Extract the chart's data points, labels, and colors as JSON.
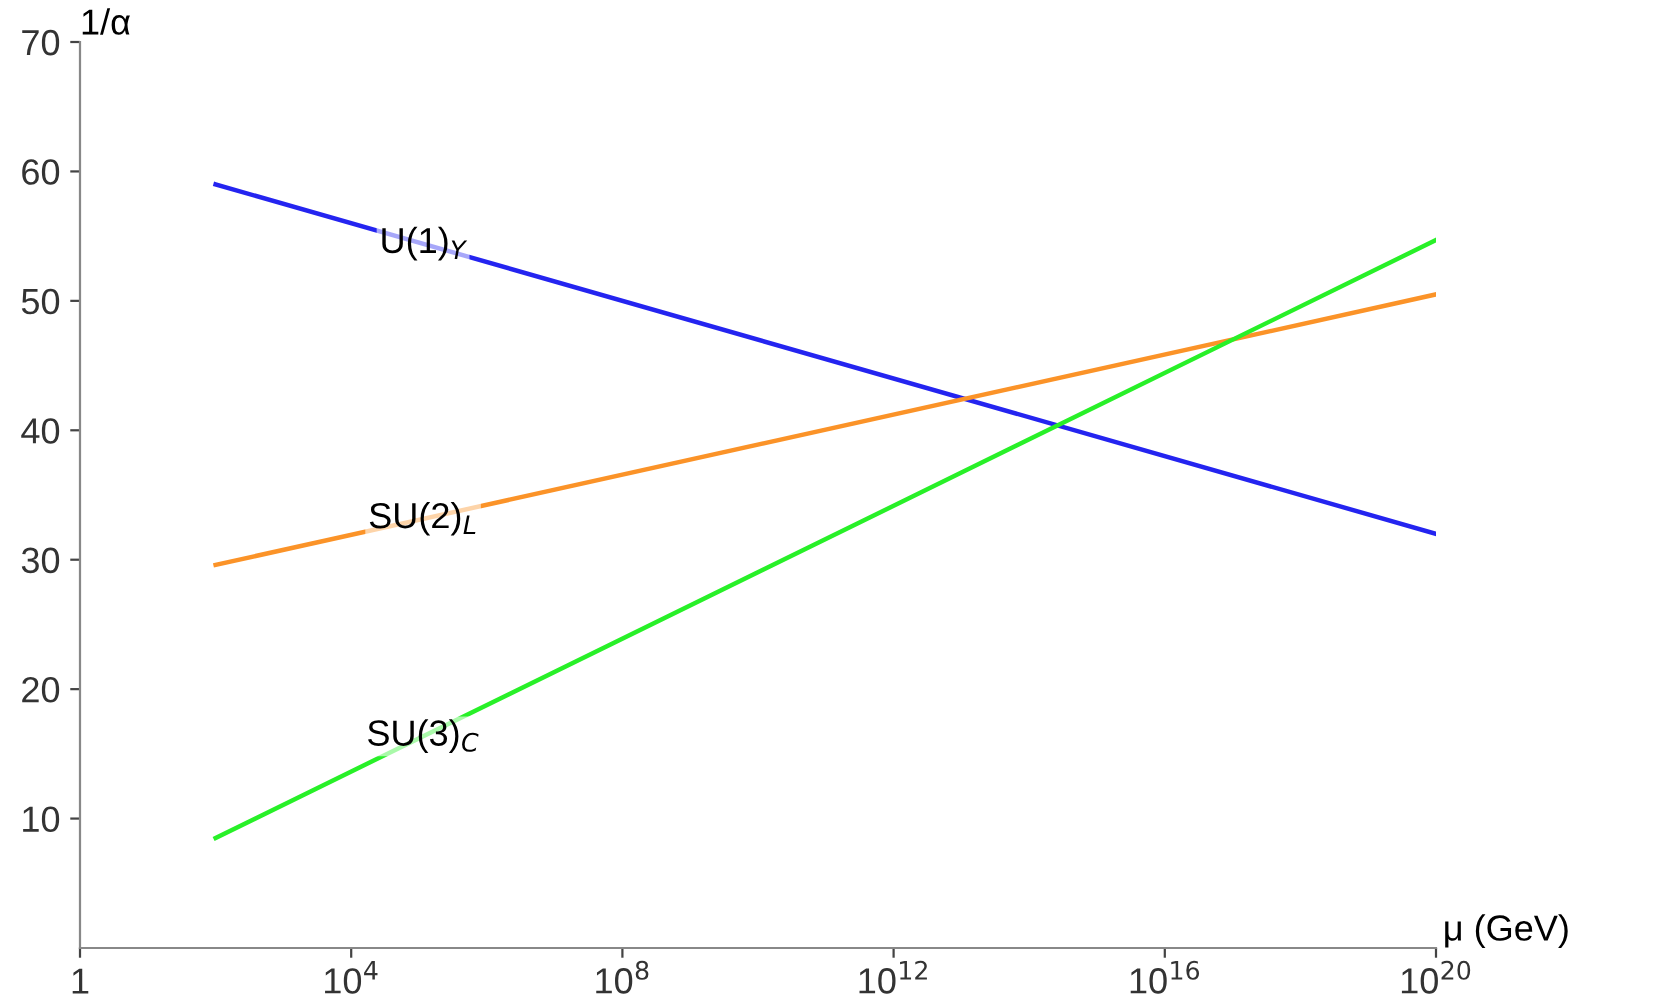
{
  "chart_data": {
    "type": "line",
    "xlabel": "μ (GeV)",
    "ylabel": "1/α",
    "log": "x",
    "x": [
      100,
      1e+20
    ],
    "series": [
      {
        "name": "U(1)$_{Y}$",
        "color": "#2424f0",
        "values": [
          59,
          32
        ]
      },
      {
        "name": "SU(2)$_{L}$",
        "color": "#fb9328",
        "values": [
          29.6,
          50.5
        ]
      },
      {
        "name": "SU(3)$_{C}$",
        "color": "#28f028",
        "values": [
          8.5,
          54.7
        ]
      }
    ],
    "xlim": [
      1,
      1e+20
    ],
    "ylim": [
      0,
      70
    ],
    "xticks": [
      {
        "value": 1,
        "label": "1"
      },
      {
        "value": 10000,
        "label": "10$^{4}$"
      },
      {
        "value": 100000000,
        "label": "10$^{8}$"
      },
      {
        "value": 1000000000000.0,
        "label": "10$^{12}$"
      },
      {
        "value": 1e+16,
        "label": "10$^{16}$"
      },
      {
        "value": 1e+20,
        "label": "10$^{20}$"
      }
    ],
    "yticks": [
      10,
      20,
      30,
      40,
      50,
      60,
      70
    ],
    "grid": false,
    "legend": false,
    "marker": "none",
    "line_style": "solid"
  }
}
